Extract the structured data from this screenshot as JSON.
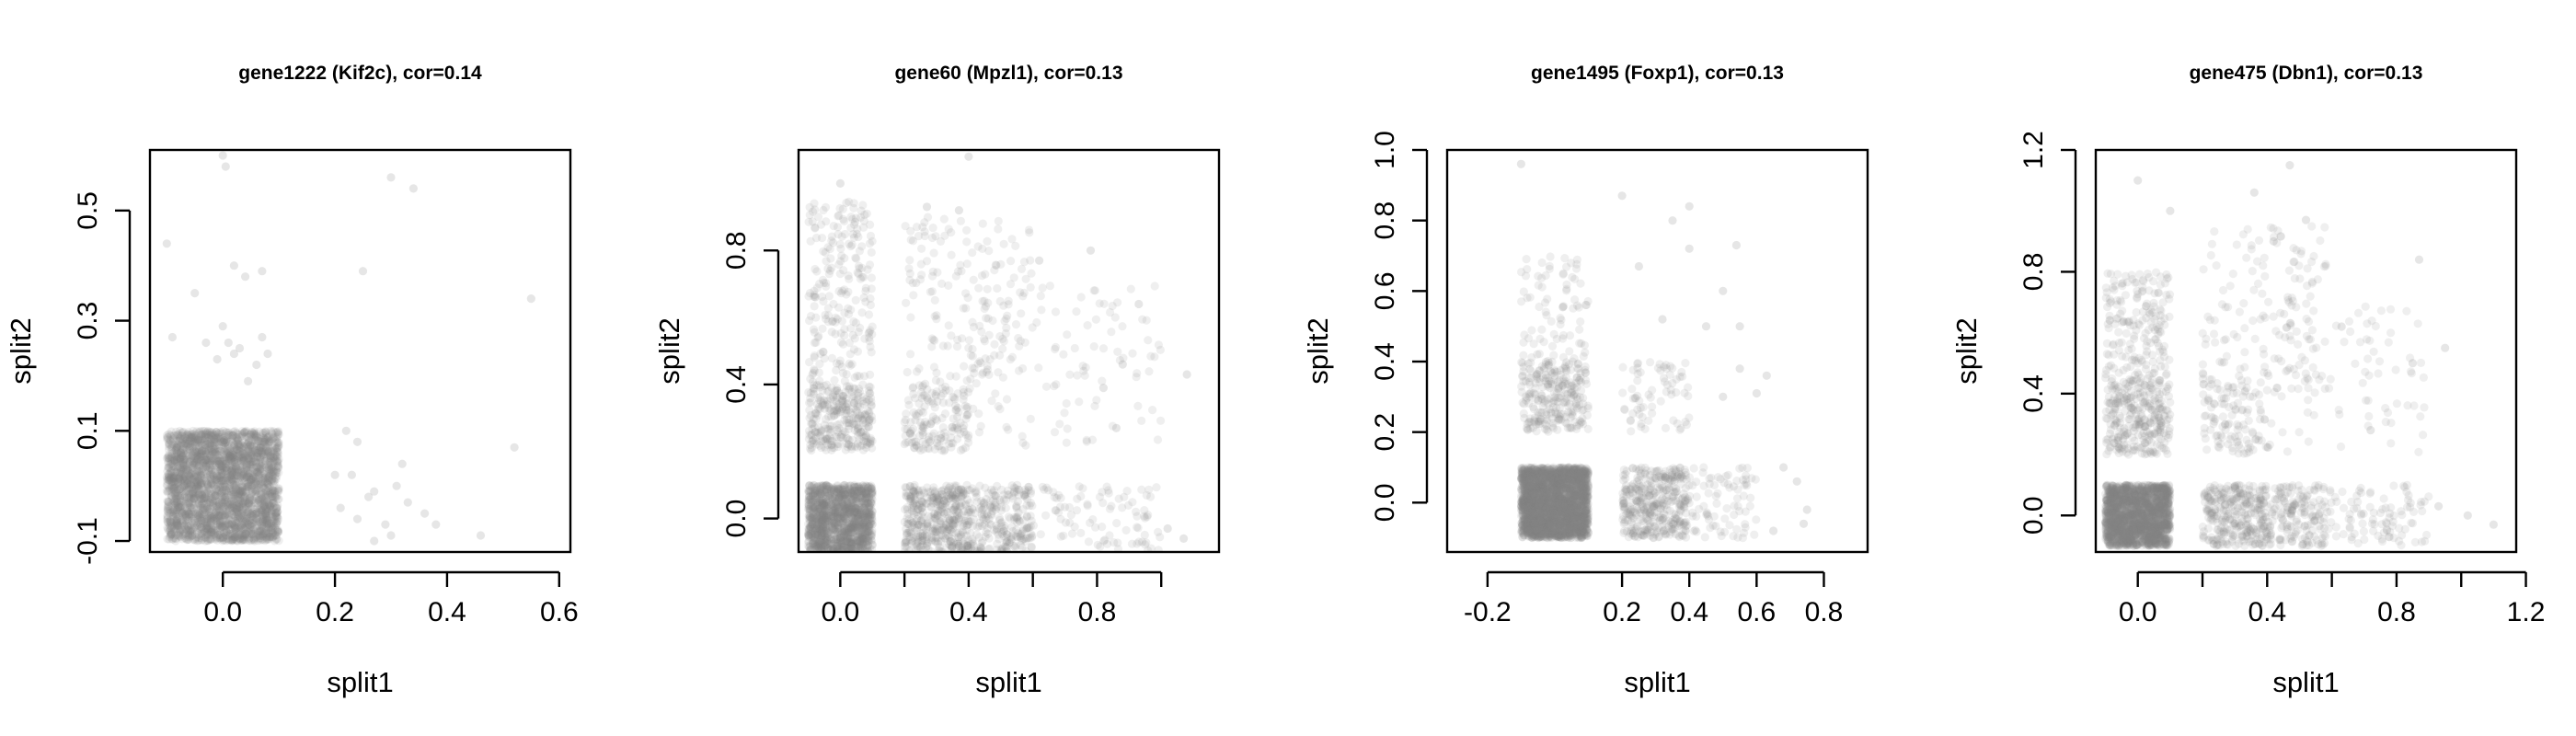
{
  "colors": {
    "point": "#808080",
    "axis": "#000000",
    "background": "#ffffff"
  },
  "chart_data": [
    {
      "type": "scatter",
      "title": "gene1222 (Kif2c), cor=0.14",
      "xlabel": "split1",
      "ylabel": "split2",
      "xlim": [
        -0.13,
        0.62
      ],
      "ylim": [
        -0.12,
        0.61
      ],
      "xticks": [
        0.0,
        0.2,
        0.4,
        0.6
      ],
      "xtick_labels": [
        "0.0",
        "0.2",
        "0.4",
        "0.6"
      ],
      "yticks": [
        -0.1,
        0.1,
        0.3,
        0.5
      ],
      "ytick_labels": [
        "-0.1",
        "0.1",
        "0.3",
        "0.5"
      ],
      "grid": false,
      "legend": "none",
      "clusters": [
        {
          "x_range": [
            -0.1,
            0.1
          ],
          "y_range": [
            -0.1,
            0.1
          ],
          "n": 3000,
          "density": "very dense"
        }
      ],
      "points": [
        [
          -0.1,
          0.44
        ],
        [
          -0.09,
          0.27
        ],
        [
          -0.03,
          0.26
        ],
        [
          0.0,
          0.6
        ],
        [
          0.005,
          0.58
        ],
        [
          0.02,
          0.4
        ],
        [
          0.04,
          0.38
        ],
        [
          0.0,
          0.29
        ],
        [
          0.01,
          0.26
        ],
        [
          0.03,
          0.25
        ],
        [
          0.02,
          0.24
        ],
        [
          -0.01,
          0.23
        ],
        [
          0.07,
          0.27
        ],
        [
          0.08,
          0.24
        ],
        [
          0.06,
          0.22
        ],
        [
          0.07,
          0.39
        ],
        [
          0.045,
          0.19
        ],
        [
          -0.05,
          0.35
        ],
        [
          0.25,
          0.39
        ],
        [
          0.3,
          0.56
        ],
        [
          0.34,
          0.54
        ],
        [
          0.55,
          0.34
        ],
        [
          0.52,
          0.07
        ],
        [
          0.22,
          0.1
        ],
        [
          0.24,
          0.08
        ],
        [
          0.23,
          0.02
        ],
        [
          0.27,
          -0.01
        ],
        [
          0.26,
          -0.02
        ],
        [
          0.32,
          0.04
        ],
        [
          0.33,
          -0.03
        ],
        [
          0.36,
          -0.05
        ],
        [
          0.29,
          -0.07
        ],
        [
          0.3,
          -0.09
        ],
        [
          0.27,
          -0.1
        ],
        [
          0.2,
          0.02
        ],
        [
          0.21,
          -0.04
        ],
        [
          0.38,
          -0.07
        ],
        [
          0.31,
          0.0
        ],
        [
          0.24,
          -0.06
        ],
        [
          0.46,
          -0.09
        ]
      ]
    },
    {
      "type": "scatter",
      "title": "gene60 (Mpzl1), cor=0.13",
      "xlabel": "split1",
      "ylabel": "split2",
      "xlim": [
        -0.13,
        1.18
      ],
      "ylim": [
        -0.1,
        1.1
      ],
      "xticks": [
        0.0,
        0.4,
        0.8
      ],
      "xtick_labels": [
        "0.0",
        "0.4",
        "0.8"
      ],
      "xticks_minor": [
        0.2,
        0.6,
        1.0
      ],
      "yticks": [
        0.0,
        0.4,
        0.8
      ],
      "ytick_labels": [
        "0.0",
        "0.4",
        "0.8"
      ],
      "grid": false,
      "legend": "none",
      "clusters": [
        {
          "x_range": [
            -0.1,
            0.1
          ],
          "y_range": [
            -0.1,
            0.1
          ],
          "n": 1400,
          "density": "very dense"
        },
        {
          "x_range": [
            0.2,
            0.4
          ],
          "y_range": [
            -0.1,
            0.1
          ],
          "n": 420,
          "density": "dense"
        },
        {
          "x_range": [
            0.4,
            0.6
          ],
          "y_range": [
            -0.1,
            0.1
          ],
          "n": 240,
          "density": "medium"
        },
        {
          "x_range": [
            0.6,
            1.0
          ],
          "y_range": [
            -0.1,
            0.1
          ],
          "n": 90,
          "density": "sparse"
        },
        {
          "x_range": [
            -0.1,
            0.1
          ],
          "y_range": [
            0.2,
            0.4
          ],
          "n": 300,
          "density": "dense"
        },
        {
          "x_range": [
            -0.1,
            0.1
          ],
          "y_range": [
            0.4,
            0.95
          ],
          "n": 220,
          "density": "medium"
        },
        {
          "x_range": [
            0.2,
            0.4
          ],
          "y_range": [
            0.2,
            0.4
          ],
          "n": 160,
          "density": "medium"
        },
        {
          "x_range": [
            0.2,
            0.6
          ],
          "y_range": [
            0.4,
            0.9
          ],
          "n": 160,
          "density": "sparse"
        },
        {
          "x_range": [
            0.4,
            1.0
          ],
          "y_range": [
            0.2,
            0.7
          ],
          "n": 110,
          "density": "sparse"
        }
      ],
      "points": [
        [
          0.0,
          1.0
        ],
        [
          0.4,
          1.08
        ],
        [
          0.27,
          0.93
        ],
        [
          0.37,
          0.92
        ],
        [
          0.62,
          0.77
        ],
        [
          0.78,
          0.8
        ],
        [
          0.93,
          0.64
        ],
        [
          0.88,
          0.46
        ],
        [
          1.08,
          0.43
        ],
        [
          1.02,
          -0.03
        ],
        [
          1.07,
          -0.06
        ],
        [
          0.82,
          0.39
        ],
        [
          0.86,
          0.27
        ]
      ]
    },
    {
      "type": "scatter",
      "title": "gene1495 (Foxp1), cor=0.13",
      "xlabel": "split1",
      "ylabel": "split2",
      "xlim": [
        -0.32,
        0.93
      ],
      "ylim": [
        -0.14,
        1.0
      ],
      "xticks": [
        -0.2,
        0.2,
        0.4,
        0.6,
        0.8
      ],
      "xtick_labels": [
        "-0.2",
        "0.2",
        "0.4",
        "0.6",
        "0.8"
      ],
      "yticks": [
        0.0,
        0.2,
        0.4,
        0.6,
        0.8,
        1.0
      ],
      "ytick_labels": [
        "0.0",
        "0.2",
        "0.4",
        "0.6",
        "0.8",
        "1.0"
      ],
      "grid": false,
      "legend": "none",
      "clusters": [
        {
          "x_range": [
            -0.1,
            0.1
          ],
          "y_range": [
            -0.1,
            0.1
          ],
          "n": 2600,
          "density": "very dense"
        },
        {
          "x_range": [
            0.2,
            0.4
          ],
          "y_range": [
            -0.1,
            0.1
          ],
          "n": 380,
          "density": "dense"
        },
        {
          "x_range": [
            0.4,
            0.6
          ],
          "y_range": [
            -0.1,
            0.1
          ],
          "n": 80,
          "density": "sparse"
        },
        {
          "x_range": [
            -0.1,
            0.1
          ],
          "y_range": [
            0.2,
            0.4
          ],
          "n": 260,
          "density": "dense"
        },
        {
          "x_range": [
            -0.1,
            0.1
          ],
          "y_range": [
            0.4,
            0.7
          ],
          "n": 80,
          "density": "sparse"
        },
        {
          "x_range": [
            0.2,
            0.4
          ],
          "y_range": [
            0.2,
            0.4
          ],
          "n": 70,
          "density": "sparse"
        }
      ],
      "points": [
        [
          -0.1,
          0.96
        ],
        [
          0.2,
          0.87
        ],
        [
          0.4,
          0.84
        ],
        [
          0.35,
          0.8
        ],
        [
          0.25,
          0.67
        ],
        [
          0.5,
          0.6
        ],
        [
          0.4,
          0.72
        ],
        [
          0.54,
          0.73
        ],
        [
          0.55,
          0.38
        ],
        [
          0.6,
          0.31
        ],
        [
          0.5,
          0.3
        ],
        [
          0.63,
          0.36
        ],
        [
          0.45,
          0.5
        ],
        [
          0.32,
          0.52
        ],
        [
          0.68,
          0.1
        ],
        [
          0.72,
          0.06
        ],
        [
          0.75,
          -0.02
        ],
        [
          0.74,
          -0.06
        ],
        [
          0.65,
          -0.08
        ],
        [
          0.55,
          0.5
        ]
      ]
    },
    {
      "type": "scatter",
      "title": "gene475 (Dbn1), cor=0.13",
      "xlabel": "split1",
      "ylabel": "split2",
      "xlim": [
        -0.13,
        1.17
      ],
      "ylim": [
        -0.12,
        1.2
      ],
      "xticks": [
        0.0,
        0.4,
        0.8,
        1.2
      ],
      "xtick_labels": [
        "0.0",
        "0.4",
        "0.8",
        "1.2"
      ],
      "xticks_minor": [
        0.2,
        0.6,
        1.0
      ],
      "yticks": [
        0.0,
        0.4,
        0.8,
        1.2
      ],
      "ytick_labels": [
        "0.0",
        "0.4",
        "0.8",
        "1.2"
      ],
      "grid": false,
      "legend": "none",
      "clusters": [
        {
          "x_range": [
            -0.1,
            0.1
          ],
          "y_range": [
            -0.1,
            0.1
          ],
          "n": 1800,
          "density": "very dense"
        },
        {
          "x_range": [
            0.2,
            0.4
          ],
          "y_range": [
            -0.1,
            0.1
          ],
          "n": 300,
          "density": "dense"
        },
        {
          "x_range": [
            0.4,
            0.6
          ],
          "y_range": [
            -0.1,
            0.1
          ],
          "n": 180,
          "density": "medium"
        },
        {
          "x_range": [
            0.6,
            0.9
          ],
          "y_range": [
            -0.1,
            0.1
          ],
          "n": 90,
          "density": "sparse"
        },
        {
          "x_range": [
            -0.1,
            0.1
          ],
          "y_range": [
            0.2,
            0.45
          ],
          "n": 300,
          "density": "dense"
        },
        {
          "x_range": [
            -0.1,
            0.1
          ],
          "y_range": [
            0.45,
            0.8
          ],
          "n": 180,
          "density": "medium"
        },
        {
          "x_range": [
            0.2,
            0.4
          ],
          "y_range": [
            0.2,
            0.45
          ],
          "n": 120,
          "density": "medium"
        },
        {
          "x_range": [
            0.2,
            0.6
          ],
          "y_range": [
            0.45,
            0.95
          ],
          "n": 130,
          "density": "sparse"
        },
        {
          "x_range": [
            0.4,
            0.9
          ],
          "y_range": [
            0.2,
            0.7
          ],
          "n": 90,
          "density": "sparse"
        }
      ],
      "points": [
        [
          0.0,
          1.1
        ],
        [
          0.1,
          1.0
        ],
        [
          0.36,
          1.06
        ],
        [
          0.47,
          1.15
        ],
        [
          0.42,
          0.9
        ],
        [
          0.52,
          0.97
        ],
        [
          0.87,
          0.84
        ],
        [
          0.63,
          0.62
        ],
        [
          0.95,
          0.55
        ],
        [
          0.85,
          0.5
        ],
        [
          1.02,
          0.0
        ],
        [
          1.1,
          -0.03
        ],
        [
          0.93,
          0.03
        ],
        [
          0.72,
          0.28
        ]
      ]
    }
  ]
}
